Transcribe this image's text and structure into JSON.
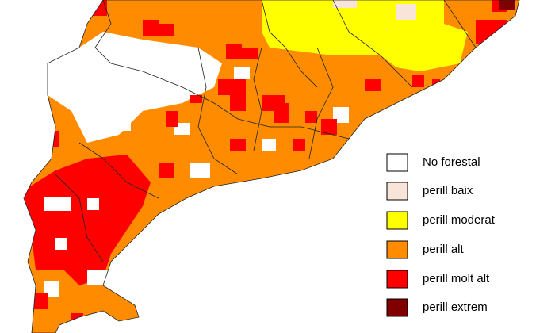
{
  "legend": {
    "items": [
      {
        "label": "No forestal",
        "color": "#ffffff"
      },
      {
        "label": "perill baix",
        "color": "#f8e4d8"
      },
      {
        "label": "perill moderat",
        "color": "#ffff00"
      },
      {
        "label": "perill alt",
        "color": "#ff8c00"
      },
      {
        "label": "perill molt alt",
        "color": "#ff0000"
      },
      {
        "label": "perill extrem",
        "color": "#800000"
      }
    ]
  }
}
